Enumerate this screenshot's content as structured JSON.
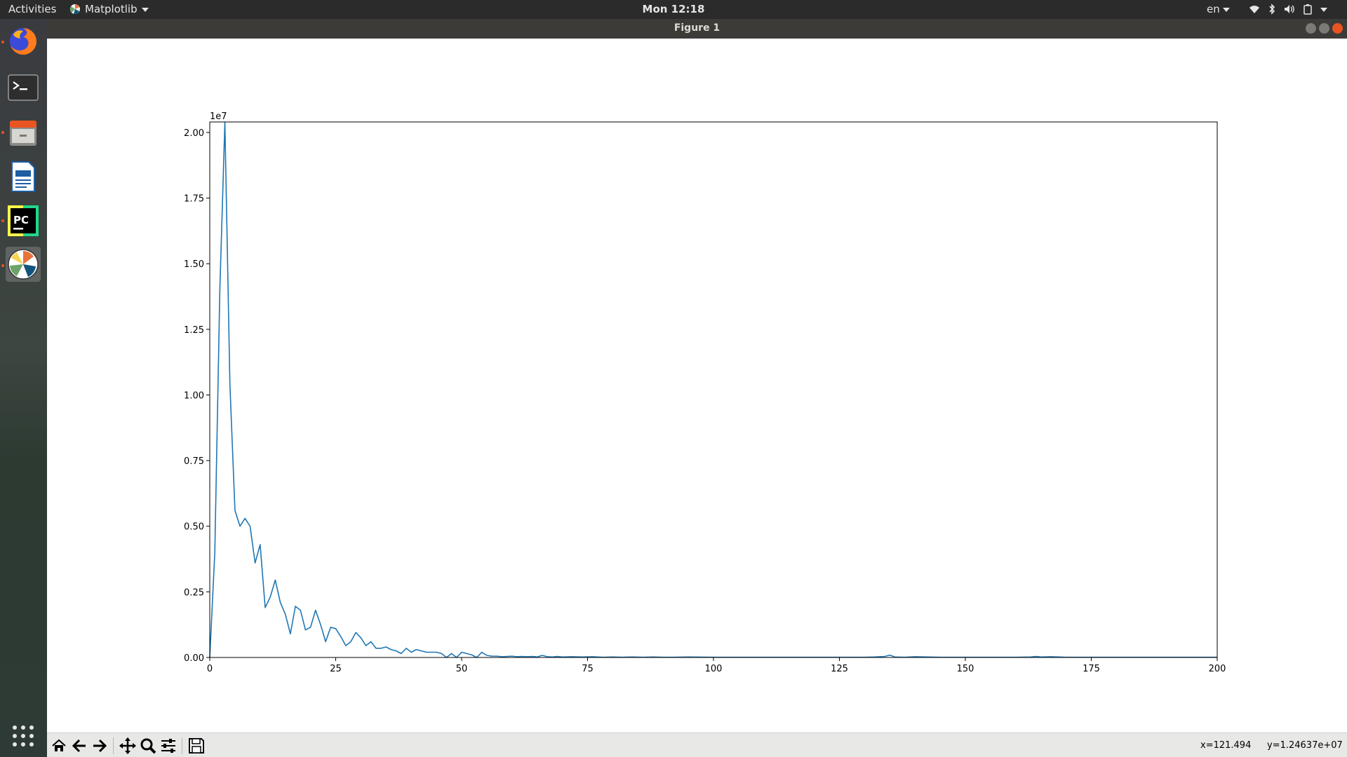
{
  "topbar": {
    "activities": "Activities",
    "app_name": "Matplotlib",
    "clock": "Mon 12:18",
    "language": "en"
  },
  "window": {
    "title": "Figure 1"
  },
  "dock": {
    "items": [
      {
        "name": "firefox",
        "active": false,
        "running": true
      },
      {
        "name": "terminal",
        "active": false,
        "running": false
      },
      {
        "name": "files",
        "active": false,
        "running": true
      },
      {
        "name": "writer",
        "active": false,
        "running": false
      },
      {
        "name": "pycharm",
        "active": false,
        "running": true
      },
      {
        "name": "matplotlib-figure",
        "active": true,
        "running": true
      }
    ],
    "show_apps_icon": "grid-icon"
  },
  "toolbar": {
    "buttons": [
      "home-icon",
      "back-icon",
      "forward-icon",
      "pan-icon",
      "zoom-icon",
      "configure-subplots-icon",
      "save-icon"
    ],
    "coords_x": "x=121.494",
    "coords_y": "y=1.24637e+07"
  },
  "chart_data": {
    "type": "line",
    "title": "",
    "xlabel": "",
    "ylabel": "",
    "offset_label": "1e7",
    "xlim": [
      0,
      200
    ],
    "ylim": [
      0,
      2.04
    ],
    "xticks": [
      0,
      25,
      50,
      75,
      100,
      125,
      150,
      175,
      200
    ],
    "xtick_labels": [
      "0",
      "25",
      "50",
      "75",
      "100",
      "125",
      "150",
      "175",
      "200"
    ],
    "yticks": [
      0,
      0.25,
      0.5,
      0.75,
      1.0,
      1.25,
      1.5,
      1.75,
      2.0
    ],
    "ytick_labels": [
      "0.00",
      "0.25",
      "0.50",
      "0.75",
      "1.00",
      "1.25",
      "1.50",
      "1.75",
      "2.00"
    ],
    "grid": false,
    "color": "#1f77b4",
    "series": [
      {
        "x": [
          0,
          1,
          2,
          3,
          4,
          5,
          6,
          7,
          8,
          9,
          10,
          11,
          12,
          13,
          14,
          15,
          16,
          17,
          18,
          19,
          20,
          21,
          22,
          23,
          24,
          25,
          26,
          27,
          28,
          29,
          30,
          31,
          32,
          33,
          34,
          35,
          36,
          37,
          38,
          39,
          40,
          41,
          42,
          43,
          44,
          45,
          46,
          47,
          48,
          49,
          50,
          51,
          52,
          53,
          54,
          55,
          56,
          57,
          58,
          59,
          60,
          61,
          62,
          63,
          64,
          65,
          66,
          67,
          68,
          69,
          70,
          72,
          74,
          76,
          78,
          80,
          82,
          84,
          86,
          88,
          90,
          92,
          95,
          100,
          105,
          110,
          115,
          120,
          125,
          130,
          132,
          134,
          135,
          136,
          138,
          140,
          145,
          150,
          155,
          160,
          163,
          164,
          165,
          167,
          170,
          175,
          180,
          185,
          190,
          195,
          200
        ],
        "y": [
          0,
          0.4,
          1.4,
          2.04,
          1.04,
          0.56,
          0.5,
          0.53,
          0.5,
          0.36,
          0.43,
          0.19,
          0.23,
          0.295,
          0.21,
          0.165,
          0.09,
          0.195,
          0.18,
          0.105,
          0.115,
          0.18,
          0.125,
          0.06,
          0.115,
          0.11,
          0.08,
          0.045,
          0.06,
          0.095,
          0.075,
          0.045,
          0.06,
          0.035,
          0.035,
          0.04,
          0.03,
          0.025,
          0.015,
          0.035,
          0.02,
          0.03,
          0.025,
          0.02,
          0.02,
          0.02,
          0.015,
          0.0,
          0.015,
          0.0,
          0.02,
          0.015,
          0.01,
          0.0,
          0.02,
          0.008,
          0.005,
          0.005,
          0.003,
          0.004,
          0.005,
          0.003,
          0.004,
          0.003,
          0.004,
          0.002,
          0.008,
          0.003,
          0.002,
          0.004,
          0.002,
          0.003,
          0.002,
          0.003,
          0.001,
          0.002,
          0.001,
          0.002,
          0.001,
          0.002,
          0.001,
          0.001,
          0.002,
          0.001,
          0.001,
          0.001,
          0.001,
          0.001,
          0.001,
          0.001,
          0.002,
          0.004,
          0.009,
          0.002,
          0.001,
          0.003,
          0.001,
          0.001,
          0.001,
          0.001,
          0.002,
          0.004,
          0.002,
          0.003,
          0.001,
          0.001,
          0.001,
          0.001,
          0.001,
          0.001,
          0.001
        ]
      }
    ]
  }
}
